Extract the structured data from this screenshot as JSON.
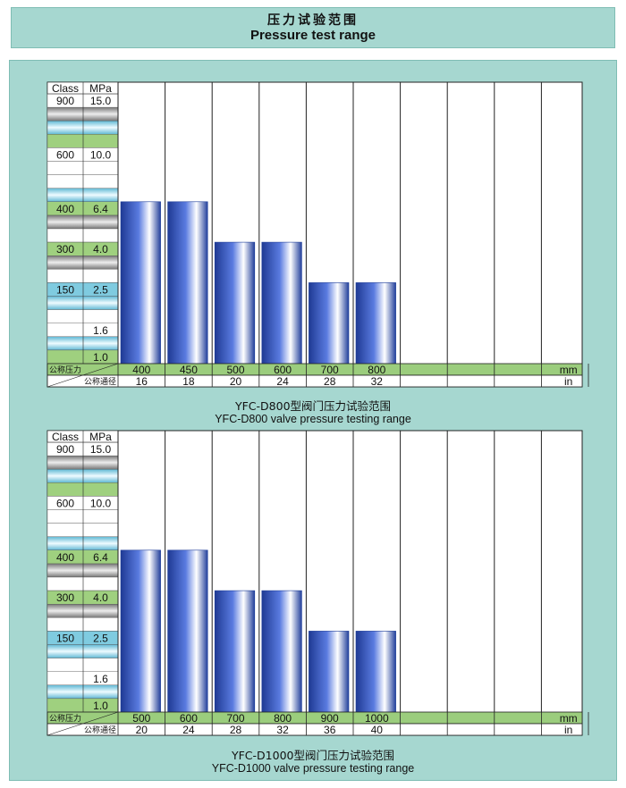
{
  "page": {
    "title_zh": "压力试验范围",
    "title_en": "Pressure test range"
  },
  "charts": [
    {
      "caption_zh": "YFC-D800型阀门压力试验范围",
      "caption_en": "YFC-D800 valve pressure testing range"
    },
    {
      "caption_zh": "YFC-D1000型阀门压力试验范围",
      "caption_en": "YFC-D1000 valve pressure testing range"
    }
  ],
  "chart_data": [
    {
      "type": "bar",
      "title": "YFC-D800型阀门压力试验范围 / YFC-D800 valve pressure testing range",
      "axis_header": {
        "class": "Class",
        "mpa": "MPa"
      },
      "y_ticks": [
        {
          "mpa": "15.0",
          "class": "900"
        },
        {
          "mpa": "10.0",
          "class": "600"
        },
        {
          "mpa": "6.4",
          "class": "400"
        },
        {
          "mpa": "4.0",
          "class": "300"
        },
        {
          "mpa": "2.5",
          "class": "150"
        },
        {
          "mpa": "1.6",
          "class": ""
        },
        {
          "mpa": "1.0",
          "class": ""
        }
      ],
      "row_label_nominal_pressure": "公称压力",
      "row_label_nominal_diameter": "公称通径",
      "unit_mm": "mm",
      "unit_in": "in",
      "categories_mm": [
        "400",
        "450",
        "500",
        "600",
        "700",
        "800",
        "",
        "",
        "",
        ""
      ],
      "categories_in": [
        "16",
        "18",
        "20",
        "24",
        "28",
        "32",
        "",
        "",
        "",
        ""
      ],
      "values_mpa": [
        6.4,
        6.4,
        4.0,
        4.0,
        2.5,
        2.5
      ],
      "ylabel": "MPa",
      "xlabel": "mm / in"
    },
    {
      "type": "bar",
      "title": "YFC-D1000型阀门压力试验范围 / YFC-D1000 valve pressure testing range",
      "axis_header": {
        "class": "Class",
        "mpa": "MPa"
      },
      "y_ticks": [
        {
          "mpa": "15.0",
          "class": "900"
        },
        {
          "mpa": "10.0",
          "class": "600"
        },
        {
          "mpa": "6.4",
          "class": "400"
        },
        {
          "mpa": "4.0",
          "class": "300"
        },
        {
          "mpa": "2.5",
          "class": "150"
        },
        {
          "mpa": "1.6",
          "class": ""
        },
        {
          "mpa": "1.0",
          "class": ""
        }
      ],
      "row_label_nominal_pressure": "公称压力",
      "row_label_nominal_diameter": "公称通径",
      "unit_mm": "mm",
      "unit_in": "in",
      "categories_mm": [
        "500",
        "600",
        "700",
        "800",
        "900",
        "1000",
        "",
        "",
        "",
        ""
      ],
      "categories_in": [
        "20",
        "24",
        "28",
        "32",
        "36",
        "40",
        "",
        "",
        "",
        ""
      ],
      "values_mpa": [
        6.4,
        6.4,
        4.0,
        4.0,
        2.5,
        2.5
      ],
      "ylabel": "MPa",
      "xlabel": "mm / in"
    }
  ]
}
